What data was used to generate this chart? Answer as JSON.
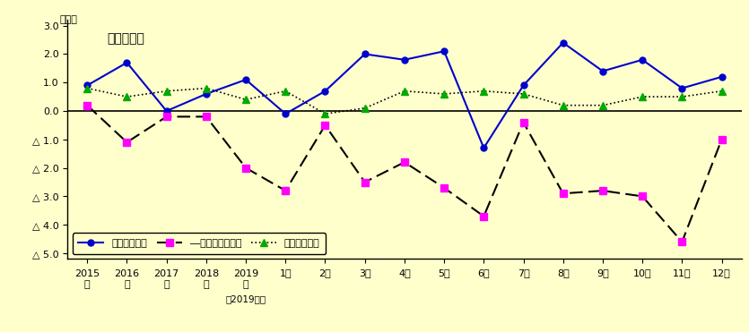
{
  "title": "調査産業計",
  "ylabel": "（％）",
  "background_color": "#ffffcc",
  "ylim": [
    -5.2,
    3.2
  ],
  "yticks": [
    3.0,
    2.0,
    1.0,
    0.0,
    -1.0,
    -2.0,
    -3.0,
    -4.0,
    -5.0
  ],
  "ytick_labels": [
    "3.0",
    "2.0",
    "1.0",
    "0.0",
    "△ 1.0",
    "△ 2.0",
    "△ 3.0",
    "△ 4.0",
    "△ 5.0"
  ],
  "x_labels_line1": [
    "2015",
    "2016",
    "2017",
    "2018",
    "2019",
    "1月",
    "2月",
    "3月",
    "4月",
    "5月",
    "6月",
    "7月",
    "8月",
    "9月",
    "10月",
    "11月",
    "12月"
  ],
  "x_labels_line2": [
    "年",
    "年",
    "年",
    "年",
    "年",
    "",
    "",
    "",
    "",
    "",
    "",
    "",
    "",
    "",
    "",
    "",
    ""
  ],
  "x_labels_line3": [
    "",
    "",
    "",
    "",
    "（2019年）",
    "",
    "",
    "",
    "",
    "",
    "",
    "",
    "",
    "",
    "",
    "",
    ""
  ],
  "series1_name": "現金給与総額",
  "series1_color": "#0000cc",
  "series1_values": [
    0.9,
    1.7,
    0.0,
    0.6,
    1.1,
    -0.1,
    0.7,
    2.0,
    1.8,
    2.1,
    -1.3,
    0.9,
    2.4,
    1.4,
    1.8,
    0.8,
    1.2
  ],
  "series2_name": "―総実労働時間数",
  "series2_color": "#ff00ff",
  "series2_values": [
    0.2,
    -1.1,
    -0.2,
    -0.2,
    -2.0,
    -2.8,
    -0.5,
    -2.5,
    -1.8,
    -2.7,
    -3.7,
    -0.4,
    -2.9,
    -2.8,
    -3.0,
    -4.6,
    -1.0
  ],
  "series3_name": "常用労働者数",
  "series3_color": "#00aa00",
  "series3_values": [
    0.8,
    0.5,
    0.7,
    0.8,
    0.4,
    0.7,
    -0.1,
    0.1,
    0.7,
    0.6,
    0.7,
    0.6,
    0.2,
    0.2,
    0.5,
    0.5,
    0.7
  ]
}
